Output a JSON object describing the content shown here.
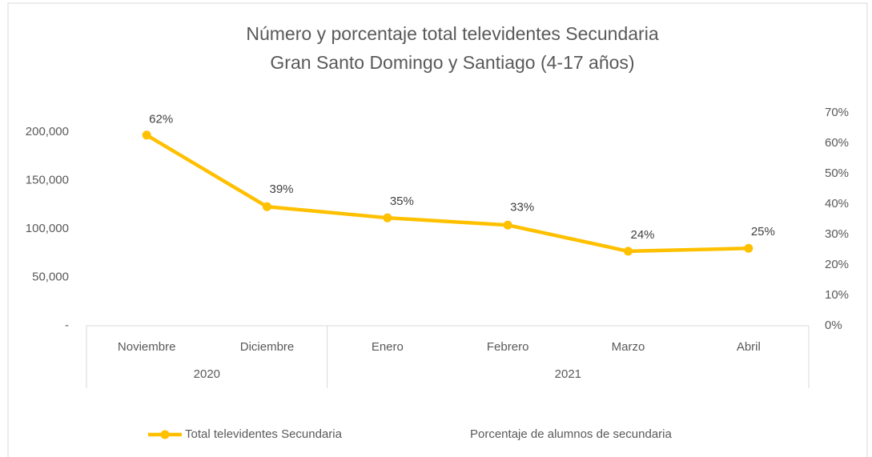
{
  "chart_data": {
    "type": "line",
    "title": "Número y porcentaje total televidentes Secundaria",
    "subtitle": "Gran Santo Domingo y Santiago (4-17 años)",
    "categories": [
      "Noviembre",
      "Diciembre",
      "Enero",
      "Febrero",
      "Marzo",
      "Abril"
    ],
    "category_groups": [
      {
        "label": "2020",
        "count": 2
      },
      {
        "label": "2021",
        "count": 4
      }
    ],
    "series": [
      {
        "name": "Total televidentes Secundaria",
        "color": "#ffc000",
        "values": [
          197000,
          123000,
          111500,
          104000,
          77000,
          80000
        ]
      },
      {
        "name": "Porcentaje de alumnos de secundaria",
        "color": "none",
        "axis": "y2",
        "values": [
          62,
          39,
          35,
          33,
          24,
          25
        ],
        "value_labels": [
          "62%",
          "39%",
          "35%",
          "33%",
          "24%",
          "25%"
        ]
      }
    ],
    "ylim": [
      0,
      220000
    ],
    "yticks": [
      {
        "value": 0,
        "label": "-"
      },
      {
        "value": 50000,
        "label": "50,000"
      },
      {
        "value": 100000,
        "label": "100,000"
      },
      {
        "value": 150000,
        "label": "150,000"
      },
      {
        "value": 200000,
        "label": "200,000"
      }
    ],
    "y2lim": [
      0,
      70
    ],
    "y2ticks": [
      {
        "value": 0,
        "label": "0%"
      },
      {
        "value": 10,
        "label": "10%"
      },
      {
        "value": 20,
        "label": "20%"
      },
      {
        "value": 30,
        "label": "30%"
      },
      {
        "value": 40,
        "label": "40%"
      },
      {
        "value": 50,
        "label": "50%"
      },
      {
        "value": 60,
        "label": "60%"
      },
      {
        "value": 70,
        "label": "70%"
      }
    ],
    "legend": "bottom"
  }
}
